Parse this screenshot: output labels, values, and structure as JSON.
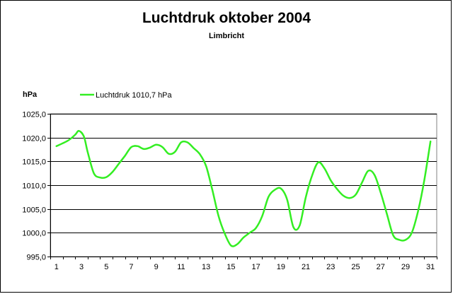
{
  "chart_data": {
    "type": "line",
    "title": "Luchtdruk oktober 2004",
    "subtitle": "Limbricht",
    "xlabel": "",
    "ylabel": "hPa",
    "ylim": [
      995,
      1025
    ],
    "yticks": [
      995,
      1000,
      1005,
      1010,
      1015,
      1020,
      1025
    ],
    "ytick_labels": [
      "995,0",
      "1000,0",
      "1005,0",
      "1010,0",
      "1015,0",
      "1020,0",
      "1025,0"
    ],
    "xlim": [
      1,
      31
    ],
    "xticks": [
      1,
      3,
      5,
      7,
      9,
      11,
      13,
      15,
      17,
      19,
      21,
      23,
      25,
      27,
      29,
      31
    ],
    "grid": "horizontal",
    "legend_position": "top-left",
    "series": [
      {
        "name": "Luchtdruk 1010,7 hPa",
        "color": "#33ee22",
        "x": [
          1,
          1.5,
          2,
          2.5,
          2.8,
          3.2,
          3.5,
          4,
          4.5,
          5,
          5.5,
          6,
          6.5,
          7,
          7.5,
          8,
          8.5,
          9,
          9.5,
          10,
          10.5,
          11,
          11.5,
          12,
          12.5,
          13,
          13.5,
          14,
          14.5,
          15,
          15.5,
          16,
          16.5,
          17,
          17.5,
          18,
          18.5,
          19,
          19.5,
          20,
          20.5,
          21,
          21.5,
          22,
          22.5,
          23,
          23.5,
          24,
          24.5,
          25,
          25.5,
          26,
          26.5,
          27,
          27.5,
          28,
          28.5,
          29,
          29.5,
          30,
          30.5,
          31
        ],
        "values": [
          1018.2,
          1018.8,
          1019.5,
          1020.6,
          1021.4,
          1020.2,
          1017.0,
          1012.5,
          1011.6,
          1011.7,
          1012.8,
          1014.5,
          1016.2,
          1018.0,
          1018.2,
          1017.6,
          1017.9,
          1018.5,
          1018.0,
          1016.6,
          1017.0,
          1019.0,
          1019.0,
          1017.8,
          1016.5,
          1014.0,
          1009.0,
          1003.5,
          999.8,
          997.3,
          997.6,
          999.0,
          1000.0,
          1001.0,
          1003.5,
          1007.5,
          1009.0,
          1009.3,
          1007.0,
          1001.2,
          1001.5,
          1007.5,
          1012.0,
          1014.8,
          1013.5,
          1011.0,
          1009.2,
          1007.8,
          1007.3,
          1008.0,
          1010.5,
          1013.0,
          1012.2,
          1008.5,
          1004.0,
          999.5,
          998.5,
          998.5,
          1000.0,
          1004.5,
          1011.0,
          1019.2
        ]
      }
    ]
  }
}
